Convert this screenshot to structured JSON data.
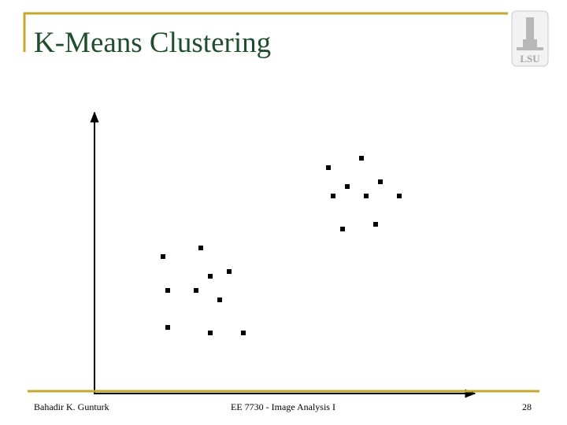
{
  "header": {
    "title": "K-Means Clustering",
    "logo_text": "LSU"
  },
  "footer": {
    "author": "Bahadir K. Gunturk",
    "course": "EE 7730 - Image Analysis I",
    "page": "28"
  }
}
